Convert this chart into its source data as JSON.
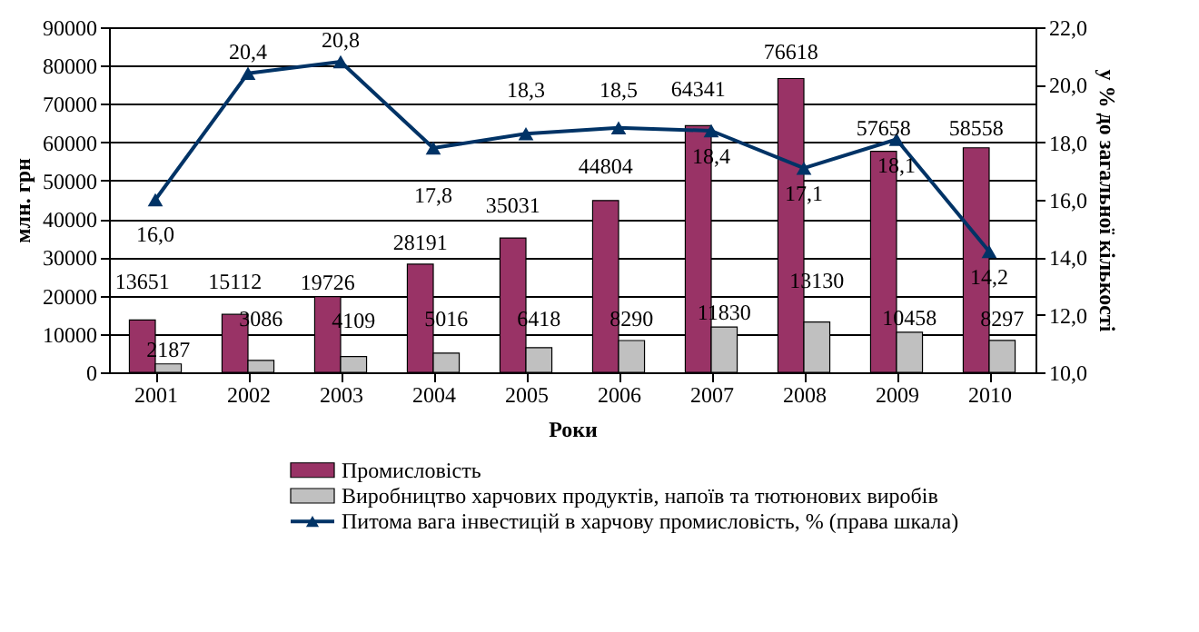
{
  "chart_data": {
    "type": "bar",
    "xlabel": "Роки",
    "ylabel": "млн. грн",
    "y2label": "у % до загальної кількості",
    "categories": [
      "2001",
      "2002",
      "2003",
      "2004",
      "2005",
      "2006",
      "2007",
      "2008",
      "2009",
      "2010"
    ],
    "series": [
      {
        "name": "Промисловість",
        "color": "#993366",
        "values": [
          13651,
          15112,
          19726,
          28191,
          35031,
          44804,
          64341,
          76618,
          57658,
          58558
        ]
      },
      {
        "name": "Виробництво харчових продуктів, напоїв та тютюнових виробів",
        "color": "#c0c0c0",
        "values": [
          2187,
          3086,
          4109,
          5016,
          6418,
          8290,
          11830,
          13130,
          10458,
          8297
        ]
      },
      {
        "name": "Питома вага інвестицій в харчову промисловість, % (права шкала)",
        "color": "#003366",
        "type": "line",
        "axis": "y2",
        "marker": "triangle",
        "values": [
          16.0,
          20.4,
          20.8,
          17.8,
          18.3,
          18.5,
          18.4,
          17.1,
          18.1,
          14.2
        ],
        "value_labels": [
          "16,0",
          "20,4",
          "20,8",
          "17,8",
          "18,3",
          "18,5",
          "18,4",
          "17,1",
          "18,1",
          "14,2"
        ]
      }
    ],
    "data_labels": true,
    "ylim": [
      0,
      90000
    ],
    "yticks": [
      0,
      10000,
      20000,
      30000,
      40000,
      50000,
      60000,
      70000,
      80000,
      90000
    ],
    "y2lim": [
      10,
      22
    ],
    "y2ticks": [
      {
        "value": 10,
        "label": "10,0"
      },
      {
        "value": 12,
        "label": "12,0"
      },
      {
        "value": 14,
        "label": "14,0"
      },
      {
        "value": 16,
        "label": "16,0"
      },
      {
        "value": 18,
        "label": "18,0"
      },
      {
        "value": 20,
        "label": "20,0"
      },
      {
        "value": 22,
        "label": "22,0"
      }
    ],
    "grid": "y",
    "legend": "bottom"
  }
}
